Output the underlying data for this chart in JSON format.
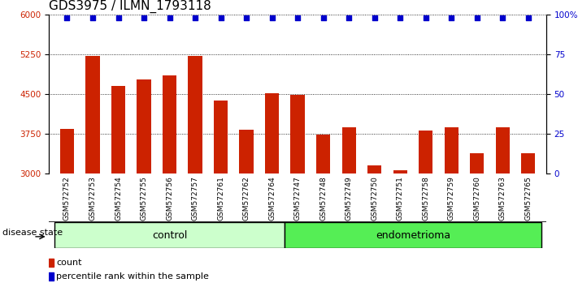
{
  "title": "GDS3975 / ILMN_1793118",
  "categories": [
    "GSM572752",
    "GSM572753",
    "GSM572754",
    "GSM572755",
    "GSM572756",
    "GSM572757",
    "GSM572761",
    "GSM572762",
    "GSM572764",
    "GSM572747",
    "GSM572748",
    "GSM572749",
    "GSM572750",
    "GSM572751",
    "GSM572758",
    "GSM572759",
    "GSM572760",
    "GSM572763",
    "GSM572765"
  ],
  "bar_values": [
    3850,
    5220,
    4650,
    4780,
    4850,
    5220,
    4380,
    3820,
    4520,
    4490,
    3740,
    3870,
    3150,
    3060,
    3810,
    3880,
    3390,
    3870,
    3390
  ],
  "percentile_values": [
    98,
    98,
    98,
    98,
    98,
    98,
    98,
    98,
    98,
    98,
    98,
    98,
    98,
    98,
    98,
    98,
    98,
    98,
    98
  ],
  "bar_color": "#cc2200",
  "percentile_color": "#0000cc",
  "ylim_left": [
    3000,
    6000
  ],
  "ylim_right": [
    0,
    100
  ],
  "yticks_left": [
    3000,
    3750,
    4500,
    5250,
    6000
  ],
  "yticks_right": [
    0,
    25,
    50,
    75,
    100
  ],
  "ytick_labels_right": [
    "0",
    "25",
    "50",
    "75",
    "100%"
  ],
  "control_count": 9,
  "endometrioma_count": 10,
  "group_labels": [
    "control",
    "endometrioma"
  ],
  "group_colors": [
    "#ccffcc",
    "#55ee55"
  ],
  "disease_state_label": "disease state",
  "legend_items": [
    {
      "label": "count",
      "color": "#cc2200"
    },
    {
      "label": "percentile rank within the sample",
      "color": "#0000cc"
    }
  ],
  "tick_bg_color": "#d8d8d8",
  "plot_bg": "#ffffff",
  "title_fontsize": 11,
  "tick_fontsize": 7.5
}
